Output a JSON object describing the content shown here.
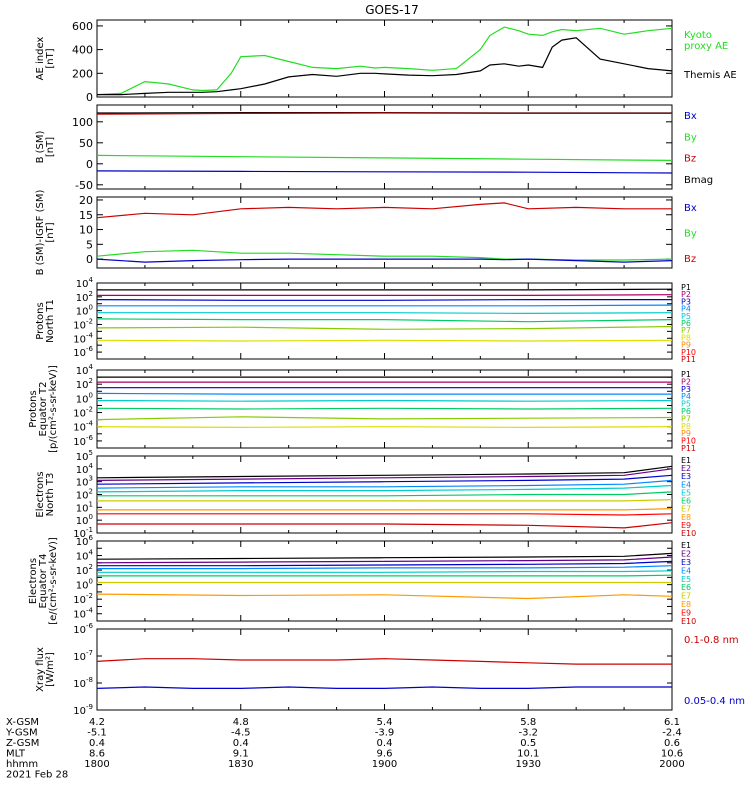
{
  "title": "GOES-17",
  "colors": {
    "black": "#000000",
    "green": "#22dd22",
    "red": "#cc0000",
    "blue": "#0000cc",
    "P": [
      "#000000",
      "#aa0066",
      "#0000cc",
      "#0088ff",
      "#00cccc",
      "#00cc66",
      "#88cc00",
      "#dddd00",
      "#ff8800",
      "#ff0000",
      "#cc0000",
      "#880000"
    ],
    "E": [
      "#000000",
      "#660088",
      "#0000cc",
      "#0088ff",
      "#00cccc",
      "#00cc66",
      "#cccc00",
      "#ff9900",
      "#ff0000",
      "#cc0000"
    ]
  },
  "footer": {
    "rows": [
      {
        "label": "X-GSM",
        "values": [
          "4.2",
          "4.8",
          "5.4",
          "5.8",
          "6.1"
        ]
      },
      {
        "label": "Y-GSM",
        "values": [
          "-5.1",
          "-4.5",
          "-3.9",
          "-3.2",
          "-2.4"
        ]
      },
      {
        "label": "Z-GSM",
        "values": [
          "0.4",
          "0.4",
          "0.4",
          "0.5",
          "0.6"
        ]
      },
      {
        "label": "MLT",
        "values": [
          "8.6",
          "9.1",
          "9.6",
          "10.1",
          "10.6"
        ]
      },
      {
        "label": "hhmm",
        "values": [
          "1800",
          "1830",
          "1900",
          "1930",
          "2000"
        ]
      }
    ],
    "date": "2021 Feb 28"
  },
  "chart_data": [
    {
      "type": "line",
      "ylabel": "AE index\n[nT]",
      "ylim": [
        0,
        650
      ],
      "yticks": [
        0,
        200,
        400,
        600
      ],
      "yticklabels": [
        "0",
        "200",
        "400",
        "600"
      ],
      "legend": [
        {
          "name": "Kyoto\nproxy AE",
          "color": "#22dd22"
        },
        {
          "name": "Themis AE",
          "color": "#000000"
        }
      ],
      "x": [
        1800,
        1805,
        1810,
        1815,
        1820,
        1822,
        1825,
        1828,
        1830,
        1835,
        1840,
        1845,
        1850,
        1855,
        1858,
        1900,
        1905,
        1910,
        1915,
        1920,
        1922,
        1925,
        1928,
        1930,
        1933,
        1935,
        1937,
        1940,
        1945,
        1950,
        1955,
        2000
      ],
      "series": [
        {
          "name": "Kyoto proxy AE",
          "color": "#22dd22",
          "values": [
            20,
            30,
            130,
            110,
            60,
            55,
            60,
            200,
            340,
            350,
            300,
            250,
            240,
            260,
            245,
            250,
            240,
            225,
            240,
            400,
            520,
            590,
            560,
            530,
            520,
            550,
            570,
            560,
            580,
            530,
            560,
            580
          ]
        },
        {
          "name": "Themis AE",
          "color": "#000000",
          "values": [
            20,
            20,
            30,
            40,
            40,
            40,
            45,
            60,
            70,
            110,
            170,
            190,
            175,
            200,
            200,
            195,
            185,
            180,
            190,
            220,
            270,
            280,
            260,
            270,
            250,
            420,
            480,
            500,
            320,
            280,
            240,
            220
          ]
        }
      ]
    },
    {
      "type": "line",
      "ylabel": "B (SM)\n[nT]",
      "ylim": [
        -60,
        140
      ],
      "yticks": [
        -50,
        0,
        50,
        100
      ],
      "yticklabels": [
        "-50",
        "0",
        "50",
        "100"
      ],
      "legend": [
        {
          "name": "Bx",
          "color": "#0000cc"
        },
        {
          "name": "By",
          "color": "#22dd22"
        },
        {
          "name": "Bz",
          "color": "#cc0000"
        },
        {
          "name": "Bmag",
          "color": "#000000"
        }
      ],
      "x": [
        1800,
        1830,
        1900,
        1930,
        2000
      ],
      "series": [
        {
          "name": "Bmag",
          "color": "#000000",
          "values": [
            121,
            122,
            122,
            121,
            121
          ]
        },
        {
          "name": "Bz",
          "color": "#cc0000",
          "values": [
            118,
            120,
            121,
            120,
            120
          ]
        },
        {
          "name": "By",
          "color": "#22dd22",
          "values": [
            20,
            17,
            14,
            11,
            8
          ]
        },
        {
          "name": "Bx",
          "color": "#0000cc",
          "values": [
            -17,
            -18,
            -19,
            -20,
            -22
          ]
        }
      ]
    },
    {
      "type": "line",
      "ylabel": "B (SM)-IGRF (SM)\n[nT]",
      "ylim": [
        -3,
        21
      ],
      "yticks": [
        0,
        5,
        10,
        15,
        20
      ],
      "yticklabels": [
        "0",
        "5",
        "10",
        "15",
        "20"
      ],
      "legend": [
        {
          "name": "Bx",
          "color": "#0000cc"
        },
        {
          "name": "By",
          "color": "#22dd22"
        },
        {
          "name": "Bz",
          "color": "#cc0000"
        }
      ],
      "x": [
        1800,
        1810,
        1820,
        1830,
        1840,
        1850,
        1900,
        1910,
        1920,
        1925,
        1930,
        1940,
        1950,
        2000
      ],
      "series": [
        {
          "name": "Bz",
          "color": "#cc0000",
          "values": [
            14,
            15.5,
            15,
            17,
            17.5,
            17,
            17.5,
            17,
            18.5,
            19,
            17,
            17.5,
            17,
            17
          ]
        },
        {
          "name": "By",
          "color": "#22dd22",
          "values": [
            1,
            2.5,
            3,
            2,
            2,
            1.5,
            1,
            1,
            0.5,
            0,
            0,
            -0.3,
            -0.3,
            0
          ]
        },
        {
          "name": "Bx",
          "color": "#0000cc",
          "values": [
            0,
            -1,
            -0.5,
            -0.2,
            0,
            0,
            0,
            0,
            0,
            -0.2,
            0,
            -0.5,
            -1,
            -0.5
          ]
        }
      ]
    },
    {
      "type": "line",
      "log": true,
      "ylabel": "Protons\nNorth T1",
      "ylim": [
        -7,
        4
      ],
      "ytickexp": [
        4,
        2,
        0,
        -2,
        -4,
        -6
      ],
      "legend_names": [
        "P1",
        "P2",
        "P3",
        "P4",
        "P5",
        "P6",
        "P7",
        "P8",
        "P9",
        "P10",
        "P11"
      ],
      "x": [
        1800,
        1830,
        1900,
        1930,
        2000
      ],
      "series": [
        {
          "name": "P1",
          "values": [
            3.0,
            3.0,
            3.0,
            3.0,
            3.1
          ]
        },
        {
          "name": "P2",
          "values": [
            2.2,
            2.2,
            2.2,
            2.2,
            2.3
          ]
        },
        {
          "name": "P3",
          "values": [
            1.6,
            1.5,
            1.5,
            1.6,
            1.6
          ]
        },
        {
          "name": "P4",
          "values": [
            0.7,
            0.7,
            0.7,
            0.7,
            0.8
          ]
        },
        {
          "name": "P5",
          "values": [
            -0.3,
            -0.3,
            -0.3,
            -0.4,
            -0.3
          ]
        },
        {
          "name": "P6",
          "values": [
            -1.2,
            -1.3,
            -1.3,
            -1.6,
            -1.3
          ]
        },
        {
          "name": "P7",
          "values": [
            -2.5,
            -2.4,
            -2.7,
            -2.6,
            -2.3
          ]
        },
        {
          "name": "P8",
          "values": [
            -4.3,
            -4.4,
            -4.3,
            -4.4,
            -4.3
          ]
        }
      ]
    },
    {
      "type": "line",
      "log": true,
      "ylabel": "Protons\nEquator T2\n[p/(cm²-s-sr-keV)]",
      "ylim": [
        -7,
        4
      ],
      "ytickexp": [
        4,
        2,
        0,
        -2,
        -4,
        -6
      ],
      "legend_names": [
        "P1",
        "P2",
        "P3",
        "P4",
        "P5",
        "P6",
        "P7",
        "P8",
        "P9",
        "P10",
        "P11"
      ],
      "x": [
        1800,
        1830,
        1900,
        1930,
        2000
      ],
      "series": [
        {
          "name": "P1",
          "values": [
            3.0,
            3.0,
            3.0,
            3.0,
            3.0
          ]
        },
        {
          "name": "P2",
          "values": [
            2.3,
            2.3,
            2.3,
            2.3,
            2.3
          ]
        },
        {
          "name": "P3",
          "values": [
            1.5,
            1.5,
            1.5,
            1.5,
            1.5
          ]
        },
        {
          "name": "P4",
          "values": [
            0.7,
            0.6,
            0.6,
            0.6,
            0.6
          ]
        },
        {
          "name": "P5",
          "values": [
            -0.3,
            -0.4,
            -0.3,
            -0.4,
            -0.3
          ]
        },
        {
          "name": "P6",
          "values": [
            -1.4,
            -1.5,
            -1.4,
            -1.5,
            -1.4
          ]
        },
        {
          "name": "P7",
          "values": [
            -3.0,
            -2.6,
            -2.9,
            -2.8,
            -2.7
          ]
        },
        {
          "name": "P8",
          "values": [
            -4.0,
            -4.1,
            -4.0,
            -4.1,
            -4.0
          ]
        }
      ]
    },
    {
      "type": "line",
      "log": true,
      "ylabel": "Electrons\nNorth T3",
      "ylim": [
        -1,
        5
      ],
      "ytickexp": [
        5,
        4,
        3,
        2,
        1,
        0,
        -1
      ],
      "legend_names": [
        "E1",
        "E2",
        "E3",
        "E4",
        "E5",
        "E6",
        "E7",
        "E8",
        "E9",
        "E10"
      ],
      "x": [
        1800,
        1830,
        1900,
        1930,
        1950,
        2000
      ],
      "series": [
        {
          "name": "E1",
          "values": [
            3.3,
            3.4,
            3.5,
            3.6,
            3.7,
            4.2
          ]
        },
        {
          "name": "E2",
          "values": [
            3.1,
            3.2,
            3.3,
            3.4,
            3.5,
            4.0
          ]
        },
        {
          "name": "E3",
          "values": [
            2.8,
            2.9,
            3.0,
            3.1,
            3.2,
            3.5
          ]
        },
        {
          "name": "E4",
          "values": [
            2.5,
            2.6,
            2.6,
            2.7,
            2.8,
            3.1
          ]
        },
        {
          "name": "E5",
          "values": [
            2.2,
            2.3,
            2.3,
            2.4,
            2.5,
            2.7
          ]
        },
        {
          "name": "E6",
          "values": [
            1.9,
            1.9,
            1.9,
            2.0,
            2.0,
            2.2
          ]
        },
        {
          "name": "E7",
          "values": [
            1.5,
            1.5,
            1.5,
            1.5,
            1.5,
            1.6
          ]
        },
        {
          "name": "E8",
          "values": [
            0.8,
            0.8,
            0.8,
            0.8,
            0.8,
            0.9
          ]
        },
        {
          "name": "E9",
          "values": [
            0.5,
            0.5,
            0.5,
            0.5,
            0.4,
            0.5
          ]
        },
        {
          "name": "E10",
          "values": [
            -0.3,
            -0.3,
            -0.3,
            -0.4,
            -0.6,
            -0.2
          ]
        }
      ]
    },
    {
      "type": "line",
      "log": true,
      "ylabel": "Electrons\nEquator T4\n[e/(cm²-s-sr-keV)]",
      "ylim": [
        -5,
        6
      ],
      "ytickexp": [
        6,
        4,
        2,
        0,
        -2,
        -4
      ],
      "legend_names": [
        "E1",
        "E2",
        "E3",
        "E4",
        "E5",
        "E6",
        "E7",
        "E8",
        "E9",
        "E10"
      ],
      "x": [
        1800,
        1830,
        1900,
        1930,
        1950,
        2000
      ],
      "series": [
        {
          "name": "E1",
          "values": [
            3.5,
            3.6,
            3.7,
            3.8,
            3.9,
            4.3
          ]
        },
        {
          "name": "E2",
          "values": [
            3.0,
            3.1,
            3.2,
            3.3,
            3.4,
            3.8
          ]
        },
        {
          "name": "E3",
          "values": [
            2.6,
            2.6,
            2.7,
            2.8,
            2.9,
            3.2
          ]
        },
        {
          "name": "E4",
          "values": [
            2.2,
            2.2,
            2.3,
            2.3,
            2.4,
            2.6
          ]
        },
        {
          "name": "E5",
          "values": [
            1.7,
            1.7,
            1.7,
            1.8,
            1.8,
            1.9
          ]
        },
        {
          "name": "E6",
          "values": [
            1.2,
            1.2,
            1.2,
            1.2,
            1.2,
            1.3
          ]
        },
        {
          "name": "E7",
          "values": [
            0.3,
            0.3,
            0.3,
            0.3,
            0.3,
            0.3
          ]
        },
        {
          "name": "E8",
          "values": [
            -1.3,
            -1.5,
            -1.4,
            -1.9,
            -1.4,
            -1.6
          ]
        }
      ]
    },
    {
      "type": "line",
      "log": true,
      "ylabel": "Xray flux\n[W/m²]",
      "ylim": [
        -9,
        -6
      ],
      "ytickexp": [
        -6,
        -7,
        -8,
        -9
      ],
      "legend": [
        {
          "name": "0.1-0.8 nm",
          "color": "#cc0000"
        },
        {
          "name": "0.05-0.4 nm",
          "color": "#0000cc"
        }
      ],
      "x": [
        1800,
        1810,
        1820,
        1830,
        1840,
        1850,
        1900,
        1910,
        1920,
        1930,
        1940,
        1950,
        2000
      ],
      "series": [
        {
          "name": "0.1-0.8 nm",
          "color": "#cc0000",
          "values": [
            -7.2,
            -7.1,
            -7.1,
            -7.15,
            -7.15,
            -7.15,
            -7.1,
            -7.15,
            -7.2,
            -7.25,
            -7.3,
            -7.3,
            -7.3
          ]
        },
        {
          "name": "0.05-0.4 nm",
          "color": "#0000cc",
          "values": [
            -8.2,
            -8.15,
            -8.2,
            -8.2,
            -8.15,
            -8.2,
            -8.2,
            -8.15,
            -8.2,
            -8.2,
            -8.15,
            -8.15,
            -8.15
          ]
        }
      ]
    }
  ]
}
